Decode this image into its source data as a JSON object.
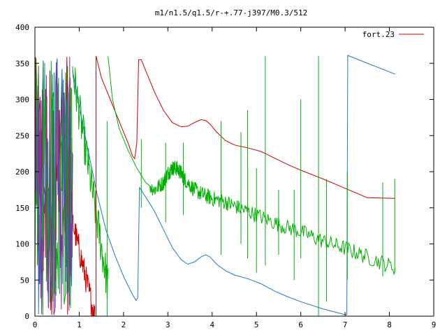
{
  "chart_data": {
    "type": "line",
    "title": "m1/n1.5/q1.5/r-+.77-j397/M0.3/512",
    "xlabel": "",
    "ylabel": "",
    "xlim": [
      0,
      9
    ],
    "ylim": [
      0,
      400
    ],
    "x_ticks": [
      "0",
      "1",
      "2",
      "3",
      "4",
      "5",
      "6",
      "7",
      "8",
      "9"
    ],
    "y_ticks": [
      "0",
      "50",
      "100",
      "150",
      "200",
      "250",
      "300",
      "350",
      "400"
    ],
    "grid": false,
    "legend_position": "top-right",
    "legend_label": "fort.23",
    "series": [
      {
        "name": "fort.23",
        "color": "#cc0000",
        "x": [
          1.38,
          1.5,
          1.7,
          1.9,
          2.1,
          2.2,
          2.25,
          2.3,
          2.34,
          2.4,
          2.5,
          2.7,
          2.9,
          3.1,
          3.3,
          3.45,
          3.6,
          3.75,
          3.85,
          3.95,
          4.1,
          4.3,
          4.5,
          4.8,
          5.1,
          5.4,
          5.7,
          6.0,
          6.5,
          7.0,
          7.5,
          8.13
        ],
        "y": [
          360,
          330,
          300,
          270,
          240,
          222,
          218,
          240,
          355,
          355,
          340,
          310,
          285,
          268,
          262,
          263,
          268,
          272,
          271,
          266,
          255,
          243,
          237,
          233,
          228,
          219,
          210,
          202,
          190,
          177,
          164,
          163
        ]
      },
      {
        "name": "",
        "color": "#00b000",
        "x": [
          1.65,
          1.75,
          1.9,
          2.1,
          2.3,
          2.5,
          2.7,
          2.9,
          3.0,
          3.1,
          3.2,
          3.3,
          3.4,
          3.6,
          3.8,
          4.0,
          4.3,
          4.6,
          5.0,
          5.5,
          6.0,
          6.5,
          7.0,
          7.5,
          8.13
        ],
        "y": [
          360,
          300,
          260,
          230,
          205,
          185,
          175,
          185,
          198,
          205,
          205,
          198,
          188,
          175,
          168,
          163,
          158,
          150,
          140,
          127,
          117,
          104,
          94,
          82,
          67
        ]
      },
      {
        "name": "",
        "color": "#1f78c8",
        "x": [
          0.85,
          1.0,
          1.2,
          1.4,
          1.6,
          1.8,
          2.0,
          2.2,
          2.28,
          2.32,
          2.36,
          2.5,
          2.7,
          2.9,
          3.1,
          3.3,
          3.45,
          3.6,
          3.75,
          3.85,
          3.95,
          4.1,
          4.3,
          4.5,
          4.8,
          5.1,
          5.4,
          5.7,
          6.0,
          6.5,
          7.0,
          7.04,
          7.06,
          8.13
        ],
        "y": [
          340,
          290,
          230,
          170,
          120,
          85,
          55,
          30,
          22,
          25,
          178,
          165,
          145,
          120,
          95,
          78,
          72,
          75,
          82,
          85,
          82,
          72,
          63,
          57,
          52,
          45,
          35,
          27,
          20,
          10,
          2,
          2,
          361,
          335
        ]
      }
    ],
    "spikes": [
      {
        "color": "#00b000",
        "x": 1.63,
        "ymin": 0,
        "ymax": 270
      },
      {
        "color": "#cc0000",
        "x": 1.38,
        "ymin": 0,
        "ymax": 360
      },
      {
        "color": "#00b000",
        "x": 2.4,
        "ymin": 150,
        "ymax": 245
      },
      {
        "color": "#00b000",
        "x": 2.95,
        "ymin": 130,
        "ymax": 240
      },
      {
        "color": "#00b000",
        "x": 3.35,
        "ymin": 140,
        "ymax": 240
      },
      {
        "color": "#00b000",
        "x": 4.2,
        "ymin": 85,
        "ymax": 270
      },
      {
        "color": "#00b000",
        "x": 4.65,
        "ymin": 100,
        "ymax": 255
      },
      {
        "color": "#00b000",
        "x": 4.8,
        "ymin": 80,
        "ymax": 285
      },
      {
        "color": "#00b000",
        "x": 5.0,
        "ymin": 60,
        "ymax": 205
      },
      {
        "color": "#00b000",
        "x": 5.2,
        "ymin": 70,
        "ymax": 360
      },
      {
        "color": "#00b000",
        "x": 5.5,
        "ymin": 85,
        "ymax": 175
      },
      {
        "color": "#00b000",
        "x": 5.85,
        "ymin": 50,
        "ymax": 175
      },
      {
        "color": "#00b000",
        "x": 6.0,
        "ymin": 80,
        "ymax": 300
      },
      {
        "color": "#00b000",
        "x": 6.4,
        "ymin": 0,
        "ymax": 360
      },
      {
        "color": "#00b000",
        "x": 6.58,
        "ymin": 20,
        "ymax": 190
      },
      {
        "color": "#00b000",
        "x": 7.05,
        "ymin": 50,
        "ymax": 200
      },
      {
        "color": "#00b000",
        "x": 7.85,
        "ymin": 55,
        "ymax": 185
      },
      {
        "color": "#00b000",
        "x": 8.12,
        "ymin": 60,
        "ymax": 190
      }
    ],
    "noise_region": {
      "x_range": [
        0,
        0.85
      ],
      "y_range": [
        0,
        360
      ],
      "colors": [
        "#cc0000",
        "#1f78c8",
        "#00b000",
        "#8030a0"
      ]
    }
  }
}
